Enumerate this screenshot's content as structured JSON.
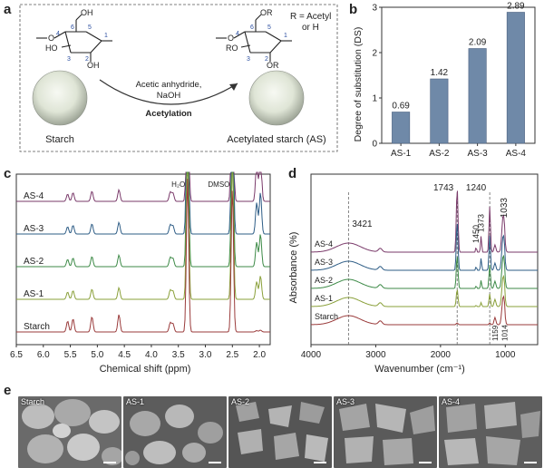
{
  "panels": {
    "a": "a",
    "b": "b",
    "c": "c",
    "d": "d",
    "e": "e"
  },
  "scheme": {
    "r_note_line1": "R = Acetyl",
    "r_note_line2": "or H",
    "reagents": "Acetic anhydride,",
    "base": "NaOH",
    "reaction": "Acetylation",
    "starch_label": "Starch",
    "product_label": "Acetylated starch (AS)",
    "left_groups": {
      "oh_top": "OH",
      "ho": "HO",
      "oh_right": "OH",
      "o": "O",
      "n1": "1",
      "n2": "2",
      "n3": "3",
      "n4": "4",
      "n5": "5",
      "n6": "6"
    },
    "right_groups": {
      "or_top": "OR",
      "ro": "RO",
      "or_right": "OR",
      "o": "O",
      "n1": "1",
      "n2": "2",
      "n3": "3",
      "n4": "4",
      "n5": "5",
      "n6": "6"
    }
  },
  "chart_data": [
    {
      "type": "bar",
      "panel": "b",
      "categories": [
        "AS-1",
        "AS-2",
        "AS-3",
        "AS-4"
      ],
      "values": [
        0.69,
        1.42,
        2.09,
        2.89
      ],
      "value_labels": [
        "0.69",
        "1.42",
        "2.09",
        "2.89"
      ],
      "ylabel": "Degree of substitution (DS)",
      "ylim": [
        0,
        3
      ],
      "yticks": [
        "0",
        "1",
        "2",
        "3"
      ],
      "bar_color": "#6f89a8"
    },
    {
      "type": "line",
      "panel": "c",
      "xlabel": "Chemical shift (ppm)",
      "xlim": [
        6.5,
        1.8
      ],
      "xticks": [
        "6.5",
        "6.0",
        "5.5",
        "5.0",
        "4.5",
        "4.0",
        "3.5",
        "3.0",
        "2.5",
        "2.0"
      ],
      "series": [
        {
          "name": "AS-4",
          "color": "#7a3a6a",
          "offset": 4
        },
        {
          "name": "AS-3",
          "color": "#2e5d86",
          "offset": 3
        },
        {
          "name": "AS-2",
          "color": "#3d8a47",
          "offset": 2
        },
        {
          "name": "AS-1",
          "color": "#8aa03a",
          "offset": 1
        },
        {
          "name": "Starch",
          "color": "#9a3b3b",
          "offset": 0
        }
      ],
      "peak_labels": [
        "H₂O",
        "DMSO"
      ]
    },
    {
      "type": "line",
      "panel": "d",
      "xlabel": "Wavenumber (cm⁻¹)",
      "ylabel": "Absorbance (%)",
      "xlim": [
        4000,
        500
      ],
      "xticks": [
        "4000",
        "3000",
        "2000",
        "1000"
      ],
      "series": [
        {
          "name": "AS-4",
          "color": "#7a3a6a",
          "offset": 4
        },
        {
          "name": "AS-3",
          "color": "#2e5d86",
          "offset": 3
        },
        {
          "name": "AS-2",
          "color": "#3d8a47",
          "offset": 2
        },
        {
          "name": "AS-1",
          "color": "#8aa03a",
          "offset": 1
        },
        {
          "name": "Starch",
          "color": "#9a3b3b",
          "offset": 0
        }
      ],
      "peak_labels": [
        "3421",
        "1743",
        "1240",
        "1033",
        "1450",
        "1373",
        "1159",
        "1014"
      ]
    }
  ],
  "sem_images": [
    {
      "label": "Starch"
    },
    {
      "label": "AS-1"
    },
    {
      "label": "AS-2"
    },
    {
      "label": "AS-3"
    },
    {
      "label": "AS-4"
    }
  ]
}
